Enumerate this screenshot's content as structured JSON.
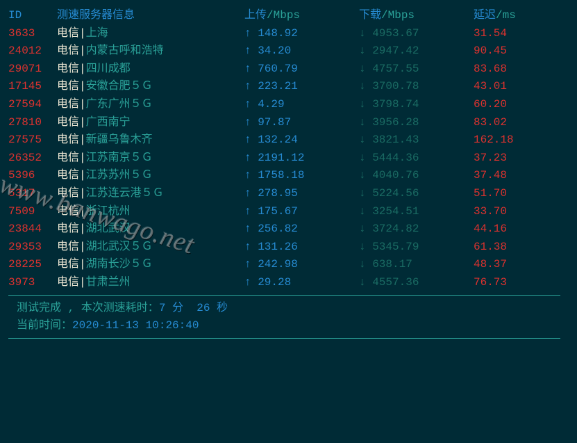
{
  "colors": {
    "background": "#002b36",
    "blue": "#268bd2",
    "cyan": "#2aa198",
    "dimcyan": "#1a6b63",
    "red": "#dc322f",
    "white": "#eee8d5",
    "hr": "#2aa198"
  },
  "header": {
    "id": "ID",
    "server": "测速服务器信息",
    "upload": "上传",
    "upload_unit": "/Mbps",
    "download": "下载",
    "download_unit": "/Mbps",
    "latency": "延迟",
    "latency_unit": "/ms"
  },
  "rows": [
    {
      "id": "3633",
      "isp": "电信",
      "sep": "|",
      "loc": "上海",
      "up": "148.92",
      "down": "4953.67",
      "lat": "31.54"
    },
    {
      "id": "24012",
      "isp": "电信",
      "sep": "|",
      "loc": "内蒙古呼和浩特",
      "up": "34.20",
      "down": "2947.42",
      "lat": "90.45"
    },
    {
      "id": "29071",
      "isp": "电信",
      "sep": "|",
      "loc": "四川成都",
      "up": "760.79",
      "down": "4757.55",
      "lat": "83.68"
    },
    {
      "id": "17145",
      "isp": "电信",
      "sep": "|",
      "loc": "安徽合肥５Ｇ",
      "up": "223.21",
      "down": "3700.78",
      "lat": "43.01"
    },
    {
      "id": "27594",
      "isp": "电信",
      "sep": "|",
      "loc": "广东广州５Ｇ",
      "up": "4.29",
      "down": "3798.74",
      "lat": "60.20"
    },
    {
      "id": "27810",
      "isp": "电信",
      "sep": "|",
      "loc": "广西南宁",
      "up": "97.87",
      "down": "3956.28",
      "lat": "83.02"
    },
    {
      "id": "27575",
      "isp": "电信",
      "sep": "|",
      "loc": "新疆乌鲁木齐",
      "up": "132.24",
      "down": "3821.43",
      "lat": "162.18"
    },
    {
      "id": "26352",
      "isp": "电信",
      "sep": "|",
      "loc": "江苏南京５Ｇ",
      "up": "2191.12",
      "down": "5444.36",
      "lat": "37.23"
    },
    {
      "id": "5396",
      "isp": "电信",
      "sep": "|",
      "loc": "江苏苏州５Ｇ",
      "up": "1758.18",
      "down": "4040.76",
      "lat": "37.48"
    },
    {
      "id": "5317",
      "isp": "电信",
      "sep": "|",
      "loc": "江苏连云港５Ｇ",
      "up": "278.95",
      "down": "5224.56",
      "lat": "51.70"
    },
    {
      "id": "7509",
      "isp": "电信",
      "sep": "|",
      "loc": "浙江杭州",
      "up": "175.67",
      "down": "3254.51",
      "lat": "33.70"
    },
    {
      "id": "23844",
      "isp": "电信",
      "sep": "|",
      "loc": "湖北武汉",
      "up": "256.82",
      "down": "3724.82",
      "lat": "44.16"
    },
    {
      "id": "29353",
      "isp": "电信",
      "sep": "|",
      "loc": "湖北武汉５Ｇ",
      "up": "131.26",
      "down": "5345.79",
      "lat": "61.38"
    },
    {
      "id": "28225",
      "isp": "电信",
      "sep": "|",
      "loc": "湖南长沙５Ｇ",
      "up": "242.98",
      "down": "638.17",
      "lat": "48.37"
    },
    {
      "id": "3973",
      "isp": "电信",
      "sep": "|",
      "loc": "甘肃兰州",
      "up": "29.28",
      "down": "4557.36",
      "lat": "76.73"
    }
  ],
  "arrows": {
    "up": "↑",
    "down": "↓"
  },
  "footer": {
    "line1_label": "测试完成 , 本次测速耗时：",
    "line1_value": "7 分  26 秒",
    "line2_label": "当前时间：",
    "line2_value": "2020-11-13 10:26:40"
  },
  "watermark": "www.banwago.net"
}
